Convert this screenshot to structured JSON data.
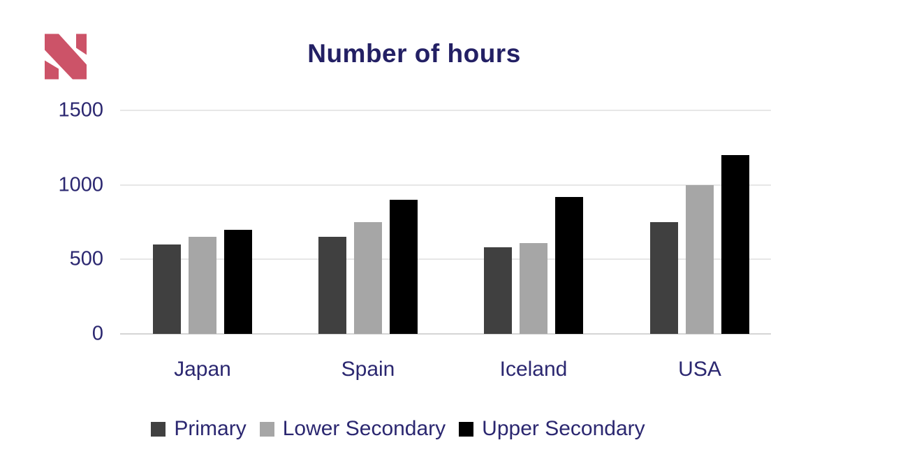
{
  "page": {
    "background": "#ffffff"
  },
  "logo": {
    "name": "N monogram logo",
    "color": "#CC5368"
  },
  "text": {
    "title_color": "#232064",
    "label_color": "#2B2770"
  },
  "chart_data": {
    "type": "bar",
    "title": "Number of hours",
    "categories": [
      "Japan",
      "Spain",
      "Iceland",
      "USA"
    ],
    "series": [
      {
        "name": "Primary",
        "color": "#404040",
        "values": [
          600,
          650,
          580,
          750
        ]
      },
      {
        "name": "Lower Secondary",
        "color": "#A6A6A6",
        "values": [
          650,
          750,
          610,
          1000
        ]
      },
      {
        "name": "Upper Secondary",
        "color": "#000000",
        "values": [
          700,
          900,
          920,
          1200
        ]
      }
    ],
    "y_ticks": [
      0,
      500,
      1000,
      1500
    ],
    "ylim": [
      0,
      1500
    ],
    "xlabel": "",
    "ylabel": "",
    "grid": true,
    "gridline_color": "#E7E7E7",
    "baseline_color": "#D5D5D5",
    "legend_position": "bottom"
  }
}
